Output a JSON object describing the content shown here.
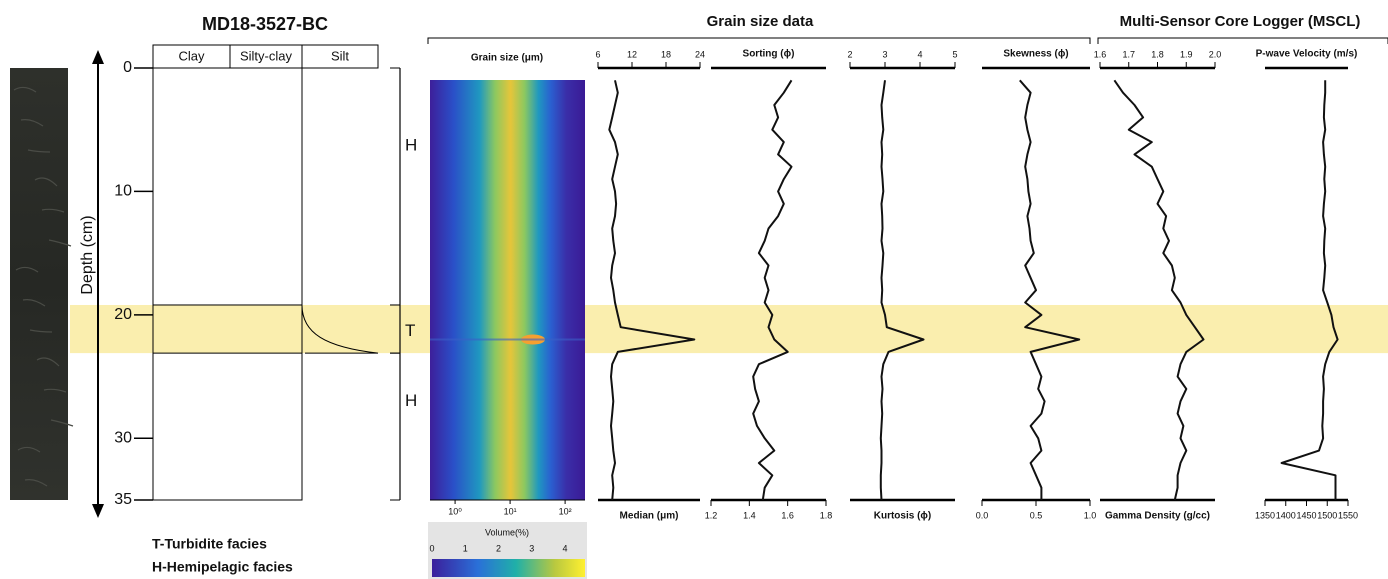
{
  "core_title": "MD18-3527-BC",
  "lithology_headers": [
    "Clay",
    "Silty-clay",
    "Silt"
  ],
  "depth_axis": {
    "label": "Depth (cm)",
    "ylim": [
      0,
      35
    ],
    "yticks": [
      0,
      10,
      20,
      30,
      35
    ]
  },
  "facies": [
    {
      "label": "H",
      "from": 0,
      "to": 19.2
    },
    {
      "label": "T",
      "from": 19.2,
      "to": 23.1
    },
    {
      "label": "H",
      "from": 23.1,
      "to": 35
    }
  ],
  "notes": [
    "T-Turbidite facies",
    "H-Hemipelagic facies"
  ],
  "group_titles": [
    "Grain size data",
    "Multi-Sensor Core Logger (MSCL)"
  ],
  "heatmap": {
    "title": "Grain size (μm)",
    "xlim": [
      0.35,
      230
    ],
    "log": true,
    "xticks": [
      {
        "value": 1,
        "label": "10⁰"
      },
      {
        "value": 10,
        "label": "10¹"
      },
      {
        "value": 100,
        "label": "10²"
      }
    ],
    "colorbar": {
      "label": "Volume(%)",
      "lim": [
        0,
        4.6
      ],
      "ticks": [
        0,
        1,
        2,
        3,
        4
      ]
    }
  },
  "chart_data": [
    {
      "type": "line",
      "title": "Median (μm)",
      "tick_side": "top",
      "xlim": [
        6,
        24
      ],
      "xticks": [
        6,
        12,
        18,
        24
      ],
      "y": [
        1,
        2,
        3,
        4,
        5,
        6,
        7,
        8,
        9,
        10,
        11,
        12,
        13,
        14,
        15,
        16,
        17,
        18,
        19,
        20,
        21,
        22,
        23,
        24,
        25,
        26,
        27,
        28,
        29,
        30,
        31,
        32,
        33,
        34,
        35
      ],
      "values": [
        9,
        9.5,
        9,
        8.5,
        8,
        9,
        9.5,
        9,
        8.5,
        9,
        9.2,
        9,
        8.5,
        8.7,
        9,
        8.5,
        8.3,
        8.7,
        9,
        9.5,
        10,
        23,
        9.5,
        8.5,
        8.3,
        8.5,
        8.7,
        8.5,
        8.3,
        8.5,
        8.7,
        9,
        8.5,
        8.7,
        8.5
      ]
    },
    {
      "type": "line",
      "title": "Sorting (ϕ)",
      "tick_side": "bottom",
      "xlim": [
        1.2,
        1.8
      ],
      "xticks": [
        1.2,
        1.4,
        1.6,
        1.8
      ],
      "y": [
        1,
        2,
        3,
        4,
        5,
        6,
        7,
        8,
        9,
        10,
        11,
        12,
        13,
        14,
        15,
        16,
        17,
        18,
        19,
        20,
        21,
        22,
        23,
        24,
        25,
        26,
        27,
        28,
        29,
        30,
        31,
        32,
        33,
        34,
        35
      ],
      "values": [
        1.62,
        1.58,
        1.53,
        1.55,
        1.52,
        1.58,
        1.55,
        1.62,
        1.58,
        1.55,
        1.58,
        1.55,
        1.5,
        1.48,
        1.45,
        1.5,
        1.48,
        1.5,
        1.48,
        1.52,
        1.5,
        1.53,
        1.6,
        1.45,
        1.42,
        1.43,
        1.45,
        1.42,
        1.44,
        1.48,
        1.53,
        1.45,
        1.52,
        1.48,
        1.47
      ]
    },
    {
      "type": "line",
      "title": "Kurtosis (ϕ)",
      "tick_side": "top",
      "xlim": [
        2,
        5
      ],
      "xticks": [
        2,
        3,
        4,
        5
      ],
      "y": [
        1,
        2,
        3,
        4,
        5,
        6,
        7,
        8,
        9,
        10,
        11,
        12,
        13,
        14,
        15,
        16,
        17,
        18,
        19,
        20,
        21,
        22,
        23,
        24,
        25,
        26,
        27,
        28,
        29,
        30,
        31,
        32,
        33,
        34,
        35
      ],
      "values": [
        3,
        2.95,
        2.9,
        2.92,
        2.95,
        2.9,
        2.92,
        2.9,
        2.93,
        2.95,
        2.9,
        2.92,
        2.93,
        2.9,
        2.95,
        2.93,
        2.9,
        2.92,
        2.9,
        3,
        3.05,
        4.1,
        3.1,
        2.95,
        2.9,
        2.93,
        2.9,
        2.92,
        2.9,
        2.88,
        2.9,
        2.9,
        2.88,
        2.88,
        2.9
      ]
    },
    {
      "type": "line",
      "title": "Skewness (ϕ)",
      "tick_side": "bottom",
      "xlim": [
        0,
        1
      ],
      "xticks": [
        {
          "value": 0,
          "label": "0.0"
        },
        0.5,
        {
          "value": 1,
          "label": "1.0"
        }
      ],
      "y": [
        1,
        2,
        3,
        4,
        5,
        6,
        7,
        8,
        9,
        10,
        11,
        12,
        13,
        14,
        15,
        16,
        17,
        18,
        19,
        20,
        21,
        22,
        23,
        24,
        25,
        26,
        27,
        28,
        29,
        30,
        31,
        32,
        33,
        34,
        35
      ],
      "values": [
        0.35,
        0.45,
        0.42,
        0.4,
        0.42,
        0.45,
        0.42,
        0.4,
        0.42,
        0.43,
        0.45,
        0.42,
        0.44,
        0.45,
        0.48,
        0.4,
        0.45,
        0.5,
        0.4,
        0.55,
        0.4,
        0.9,
        0.45,
        0.5,
        0.55,
        0.52,
        0.58,
        0.55,
        0.45,
        0.52,
        0.55,
        0.45,
        0.5,
        0.55,
        0.55
      ]
    },
    {
      "type": "line",
      "title": "Gamma Density (g/cc)",
      "tick_side": "top",
      "xlim": [
        1.6,
        2.0
      ],
      "xticks": [
        1.6,
        1.7,
        1.8,
        1.9,
        {
          "value": 2,
          "label": "2.0"
        }
      ],
      "y": [
        1,
        2,
        3,
        4,
        5,
        6,
        7,
        8,
        9,
        10,
        11,
        12,
        13,
        14,
        15,
        16,
        17,
        18,
        19,
        20,
        21,
        22,
        23,
        24,
        25,
        26,
        27,
        28,
        29,
        30,
        31,
        32,
        33,
        34,
        35
      ],
      "values": [
        1.65,
        1.68,
        1.72,
        1.75,
        1.7,
        1.78,
        1.72,
        1.78,
        1.8,
        1.82,
        1.8,
        1.83,
        1.82,
        1.84,
        1.82,
        1.85,
        1.86,
        1.85,
        1.88,
        1.9,
        1.93,
        1.96,
        1.9,
        1.88,
        1.87,
        1.9,
        1.88,
        1.87,
        1.89,
        1.88,
        1.9,
        1.88,
        1.87,
        1.87,
        1.86
      ]
    },
    {
      "type": "line",
      "title": "P-wave Velocity (m/s)",
      "tick_side": "bottom",
      "xlim": [
        1350,
        1550
      ],
      "xticks": [
        1350,
        1400,
        1450,
        1500,
        1550
      ],
      "y": [
        1,
        2,
        3,
        4,
        5,
        6,
        7,
        8,
        9,
        10,
        11,
        12,
        13,
        14,
        15,
        16,
        17,
        18,
        19,
        20,
        21,
        22,
        23,
        24,
        25,
        26,
        27,
        28,
        29,
        30,
        31,
        32,
        33,
        34,
        35
      ],
      "values": [
        1495,
        1495,
        1493,
        1492,
        1495,
        1490,
        1492,
        1495,
        1493,
        1495,
        1492,
        1490,
        1495,
        1493,
        1492,
        1495,
        1493,
        1490,
        1500,
        1510,
        1515,
        1525,
        1505,
        1495,
        1490,
        1492,
        1490,
        1490,
        1488,
        1490,
        1480,
        1390,
        1520,
        1520,
        1520
      ]
    }
  ]
}
